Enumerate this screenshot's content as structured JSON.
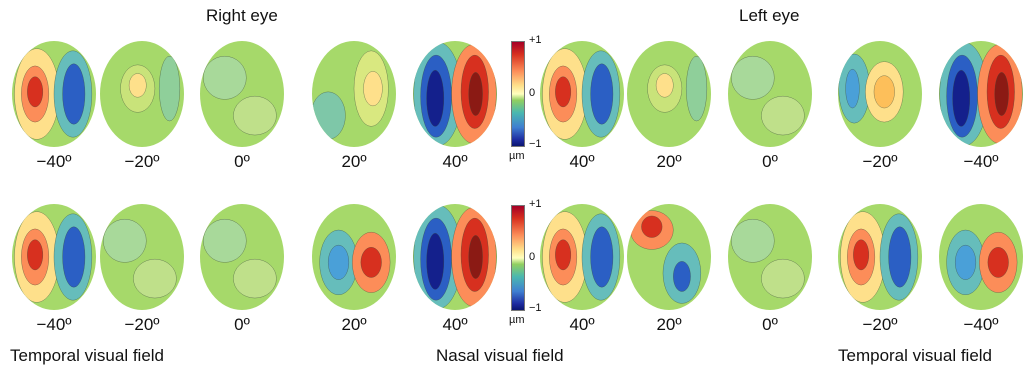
{
  "titles": {
    "right_eye": "Right eye",
    "left_eye": "Left eye"
  },
  "field_labels": {
    "temporal_left": "Temporal visual field",
    "nasal": "Nasal visual field",
    "temporal_right": "Temporal visual field"
  },
  "colorbars": [
    {
      "max": "+1",
      "mid": "0",
      "min": "−1",
      "unit": "µm"
    },
    {
      "max": "+1",
      "mid": "0",
      "min": "−1",
      "unit": "µm"
    }
  ],
  "rows": [
    {
      "right_eye": [
        {
          "angle": "−40º",
          "pattern": "red-left-blue-right"
        },
        {
          "angle": "−20º",
          "pattern": "yellow-center-spot"
        },
        {
          "angle": "0º",
          "pattern": "flat-green"
        },
        {
          "angle": "20º",
          "pattern": "yellow-right-spot"
        },
        {
          "angle": "40º",
          "pattern": "blue-left-red-right-strong"
        }
      ],
      "left_eye": [
        {
          "angle": "40º",
          "pattern": "red-left-blue-right"
        },
        {
          "angle": "20º",
          "pattern": "yellow-center-spot"
        },
        {
          "angle": "0º",
          "pattern": "flat-green"
        },
        {
          "angle": "−20º",
          "pattern": "blue-left-yellow-center"
        },
        {
          "angle": "−40º",
          "pattern": "blue-left-red-right-strong"
        }
      ]
    },
    {
      "right_eye": [
        {
          "angle": "−40º",
          "pattern": "red-left-blue-right"
        },
        {
          "angle": "−20º",
          "pattern": "flat-green"
        },
        {
          "angle": "0º",
          "pattern": "flat-green"
        },
        {
          "angle": "20º",
          "pattern": "blue-left-red-right"
        },
        {
          "angle": "40º",
          "pattern": "blue-left-red-right-strong"
        }
      ],
      "left_eye": [
        {
          "angle": "40º",
          "pattern": "red-left-blue-right"
        },
        {
          "angle": "20º",
          "pattern": "red-top-blue-bottom"
        },
        {
          "angle": "0º",
          "pattern": "flat-green"
        },
        {
          "angle": "−20º",
          "pattern": "red-left-blue-right"
        },
        {
          "angle": "−40º",
          "pattern": "blue-left-red-right"
        }
      ]
    }
  ],
  "colors": {
    "red": "#d7301f",
    "orange": "#fc8d59",
    "yellow": "#fee08b",
    "green": "#a6d96a",
    "cyan": "#66bdbb",
    "blue": "#2b5fc4",
    "navy": "#14208c"
  }
}
